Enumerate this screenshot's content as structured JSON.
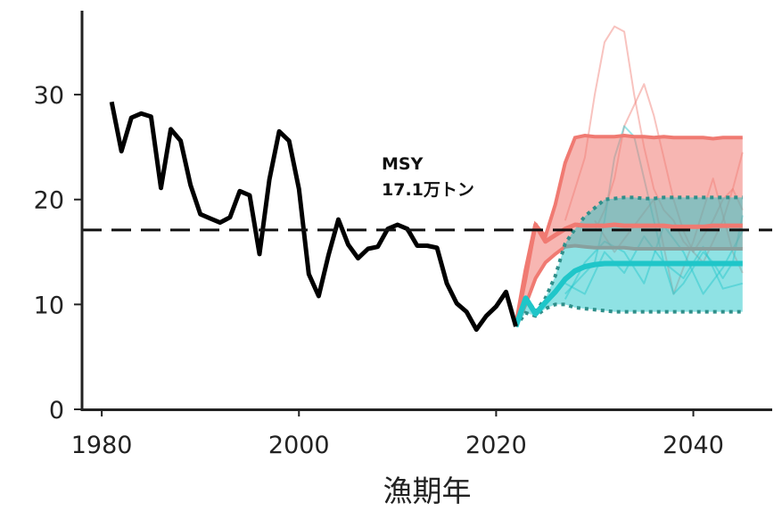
{
  "chart_data": {
    "type": "line",
    "title": "",
    "xlabel": "漁期年",
    "ylabel": "",
    "xlim": [
      1978,
      2048
    ],
    "ylim": [
      0,
      38
    ],
    "x_ticks": [
      1980,
      2000,
      2020,
      2040
    ],
    "y_ticks": [
      0,
      10,
      20,
      30
    ],
    "grid": false,
    "legend": "none",
    "reference_line": {
      "value": 17.1,
      "label_line1": "MSY",
      "label_line2": "17.1万トン"
    },
    "colors": {
      "observed": "#000000",
      "red": "#f07a72",
      "red_band": "#f07a72",
      "cyan": "#1fc6c9",
      "cyan_band": "#1fc6c9",
      "reference": "#111111"
    },
    "series": [
      {
        "type": "line",
        "x": [
          1981,
          1982,
          1983,
          1984,
          1985,
          1986,
          1987,
          1988,
          1989,
          1990,
          1991,
          1992,
          1993,
          1994,
          1995,
          1996,
          1997,
          1998,
          1999,
          2000,
          2001,
          2002,
          2003,
          2004,
          2005,
          2006,
          2007,
          2008,
          2009,
          2010,
          2011,
          2012,
          2013,
          2014,
          2015,
          2016,
          2017,
          2018,
          2019,
          2020,
          2021,
          2022
        ],
        "y": [
          29.3,
          24.6,
          27.8,
          28.2,
          27.9,
          21.1,
          26.7,
          25.6,
          21.4,
          18.6,
          18.2,
          17.8,
          18.3,
          20.8,
          20.4,
          14.8,
          21.9,
          26.5,
          25.6,
          21.0,
          12.9,
          10.8,
          14.7,
          18.1,
          15.7,
          14.4,
          15.3,
          15.5,
          17.2,
          17.6,
          17.2,
          15.6,
          15.6,
          15.4,
          12.0,
          10.1,
          9.3,
          7.6,
          8.9,
          9.8,
          11.2,
          7.9
        ]
      },
      {
        "type": "band",
        "x": [
          2022,
          2023,
          2024,
          2025,
          2026,
          2027,
          2028,
          2029,
          2030,
          2031,
          2032,
          2033,
          2034,
          2035,
          2036,
          2037,
          2038,
          2039,
          2040,
          2041,
          2042,
          2043,
          2044,
          2045
        ],
        "upper": [
          7.9,
          12.5,
          17.6,
          16.5,
          19.5,
          23.5,
          25.9,
          26.1,
          26.0,
          26.0,
          26.0,
          26.1,
          26.0,
          26.0,
          25.9,
          26.0,
          25.9,
          25.9,
          25.9,
          25.9,
          25.8,
          25.9,
          25.9,
          25.9
        ],
        "lower": [
          7.9,
          10.0,
          12.5,
          14.0,
          14.8,
          15.5,
          15.6,
          15.5,
          15.4,
          15.4,
          15.4,
          15.4,
          15.3,
          15.3,
          15.3,
          15.3,
          15.3,
          15.3,
          15.3,
          15.3,
          15.3,
          15.3,
          15.3,
          15.3
        ]
      },
      {
        "type": "band",
        "x": [
          2022,
          2023,
          2024,
          2025,
          2026,
          2027,
          2028,
          2029,
          2030,
          2031,
          2032,
          2033,
          2034,
          2035,
          2036,
          2037,
          2038,
          2039,
          2040,
          2041,
          2042,
          2043,
          2044,
          2045
        ],
        "upper": [
          7.9,
          10.7,
          9.3,
          10.6,
          12.7,
          15.8,
          17.2,
          18.4,
          19.2,
          20.0,
          20.1,
          20.2,
          20.2,
          20.1,
          20.1,
          20.2,
          20.2,
          20.2,
          20.2,
          20.2,
          20.2,
          20.2,
          20.2,
          20.2
        ],
        "lower": [
          7.9,
          9.2,
          8.9,
          9.6,
          10.0,
          10.0,
          9.7,
          9.6,
          9.5,
          9.4,
          9.3,
          9.3,
          9.3,
          9.3,
          9.3,
          9.3,
          9.3,
          9.3,
          9.3,
          9.3,
          9.3,
          9.3,
          9.3,
          9.3
        ]
      },
      {
        "type": "line",
        "x": [
          2022,
          2023,
          2024,
          2025,
          2026,
          2027,
          2028,
          2029,
          2030,
          2031,
          2032,
          2033,
          2034,
          2035,
          2036,
          2037,
          2038,
          2039,
          2040,
          2041,
          2042,
          2043,
          2044,
          2045
        ],
        "y": [
          7.9,
          13.2,
          17.6,
          16.0,
          16.6,
          17.2,
          17.6,
          17.5,
          17.5,
          17.5,
          17.6,
          17.5,
          17.5,
          17.5,
          17.5,
          17.5,
          17.4,
          17.4,
          17.4,
          17.4,
          17.5,
          17.5,
          17.5,
          17.5
        ]
      },
      {
        "type": "line",
        "x": [
          2022,
          2023,
          2024,
          2025,
          2026,
          2027,
          2028,
          2029,
          2030,
          2031,
          2032,
          2033,
          2034,
          2035,
          2036,
          2037,
          2038,
          2039,
          2040,
          2041,
          2042,
          2043,
          2044,
          2045
        ],
        "y": [
          7.9,
          10.6,
          9.1,
          10.2,
          11.2,
          12.4,
          13.2,
          13.6,
          13.8,
          13.9,
          13.9,
          13.9,
          13.9,
          13.9,
          13.9,
          13.9,
          13.9,
          13.9,
          13.9,
          13.9,
          13.9,
          13.9,
          13.9,
          13.9
        ]
      },
      {
        "type": "sample",
        "color_key": "red",
        "x": [
          2027,
          2028,
          2029,
          2030,
          2031,
          2032,
          2033,
          2034,
          2035,
          2036,
          2037,
          2038,
          2039,
          2040,
          2041,
          2042,
          2043,
          2044,
          2045
        ],
        "y": [
          18.0,
          21.0,
          24.0,
          30.0,
          35.0,
          36.5,
          36.0,
          30.0,
          25.0,
          21.0,
          19.0,
          18.0,
          16.0,
          15.0,
          16.5,
          18.0,
          20.0,
          21.0,
          19.0
        ]
      },
      {
        "type": "sample",
        "color_key": "red",
        "x": [
          2030,
          2031,
          2032,
          2033,
          2034,
          2035,
          2036,
          2037,
          2038,
          2039,
          2040,
          2041,
          2042,
          2043,
          2044,
          2045
        ],
        "y": [
          17.0,
          19.0,
          22.0,
          27.0,
          29.0,
          31.0,
          28.0,
          24.0,
          20.0,
          17.0,
          15.0,
          14.0,
          16.0,
          18.0,
          21.0,
          24.5
        ]
      },
      {
        "type": "sample",
        "color_key": "red",
        "x": [
          2030,
          2032,
          2034,
          2036,
          2038,
          2040,
          2042,
          2044,
          2045
        ],
        "y": [
          18.0,
          15.0,
          17.5,
          20.0,
          11.0,
          16.0,
          22.0,
          15.0,
          13.0
        ]
      },
      {
        "type": "sample",
        "color_key": "cyan",
        "x": [
          2027,
          2028,
          2029,
          2030,
          2031,
          2032,
          2033,
          2034,
          2035,
          2036,
          2037,
          2038,
          2039,
          2040,
          2041,
          2042,
          2043,
          2044,
          2045
        ],
        "y": [
          11.0,
          12.0,
          13.0,
          14.0,
          18.0,
          24.0,
          27.0,
          26.0,
          22.0,
          18.0,
          14.0,
          11.0,
          12.0,
          13.5,
          15.0,
          14.0,
          12.5,
          14.0,
          18.5
        ]
      },
      {
        "type": "sample",
        "color_key": "cyan",
        "x": [
          2027,
          2029,
          2031,
          2033,
          2035,
          2037,
          2039,
          2041,
          2043,
          2045
        ],
        "y": [
          10.5,
          14.0,
          16.0,
          15.0,
          12.0,
          17.5,
          15.0,
          11.0,
          13.5,
          17.0
        ]
      },
      {
        "type": "sample",
        "color_key": "cyan",
        "x": [
          2027,
          2029,
          2031,
          2033,
          2035,
          2037,
          2039,
          2041,
          2043,
          2045
        ],
        "y": [
          12.0,
          11.0,
          15.0,
          13.0,
          16.5,
          14.0,
          12.5,
          15.5,
          11.5,
          12.0
        ]
      }
    ]
  }
}
